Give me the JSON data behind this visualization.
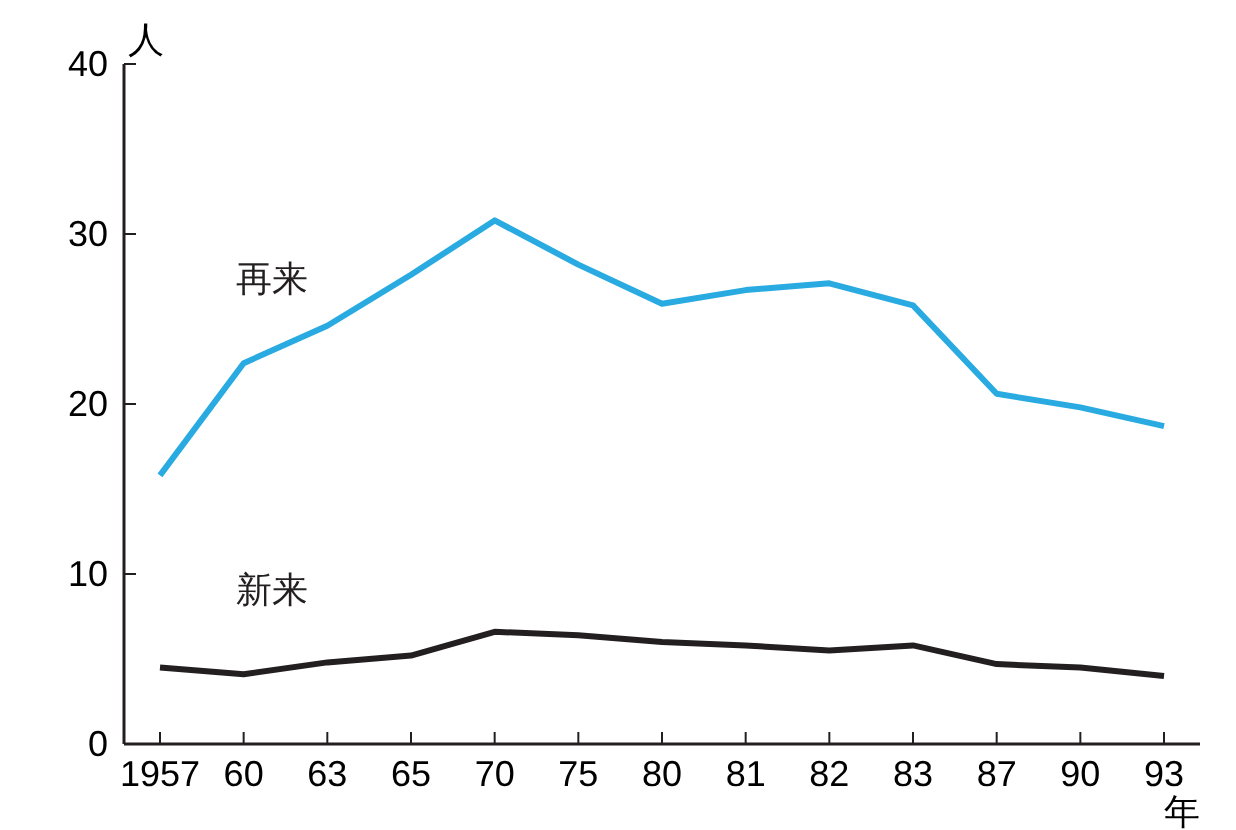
{
  "chart_data": {
    "type": "line",
    "xlabel": "年",
    "ylabel": "人",
    "categories": [
      "1957",
      "60",
      "63",
      "65",
      "70",
      "75",
      "80",
      "81",
      "82",
      "83",
      "87",
      "90",
      "93"
    ],
    "series": [
      {
        "name": "再来",
        "color": "#29abe2",
        "values": [
          15.8,
          22.4,
          24.6,
          27.6,
          30.8,
          28.2,
          25.9,
          26.7,
          27.1,
          25.8,
          20.6,
          19.8,
          18.7
        ]
      },
      {
        "name": "新来",
        "color": "#231f20",
        "values": [
          4.5,
          4.1,
          4.8,
          5.2,
          6.6,
          6.4,
          6.0,
          5.8,
          5.5,
          5.8,
          4.7,
          4.5,
          4.0
        ]
      }
    ],
    "ylim": [
      0,
      40
    ],
    "yticks": [
      0,
      10,
      20,
      30,
      40
    ],
    "grid": false,
    "legend": false,
    "marker": "none",
    "line_style": "solid"
  }
}
